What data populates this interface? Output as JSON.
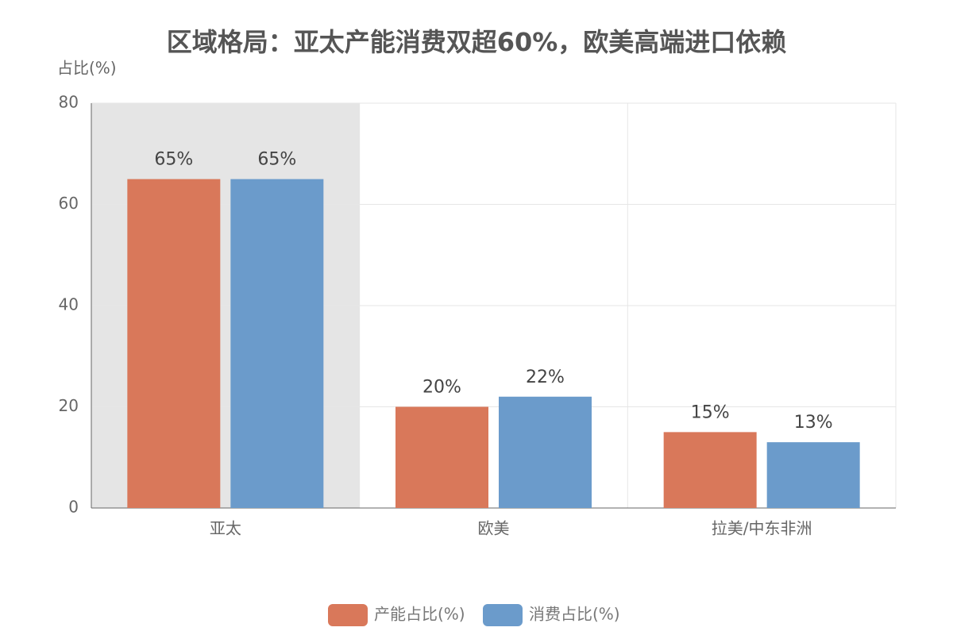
{
  "chart_data": {
    "type": "bar",
    "title": "区域格局：亚太产能消费双超60%，欧美高端进口依赖",
    "y_label": "占比(%)",
    "categories": [
      "亚太",
      "欧美",
      "拉美/中东非洲"
    ],
    "series": [
      {
        "name": "产能占比(%)",
        "color": "#d9785a",
        "values": [
          65,
          20,
          15
        ],
        "value_labels": [
          "65%",
          "20%",
          "15%"
        ]
      },
      {
        "name": "消费占比(%)",
        "color": "#6b9bcb",
        "values": [
          65,
          22,
          13
        ],
        "value_labels": [
          "65%",
          "22%",
          "13%"
        ]
      }
    ],
    "ylim": [
      0,
      80
    ],
    "yticks": [
      0,
      20,
      40,
      60,
      80
    ],
    "grid": true,
    "legend": "bottom"
  }
}
